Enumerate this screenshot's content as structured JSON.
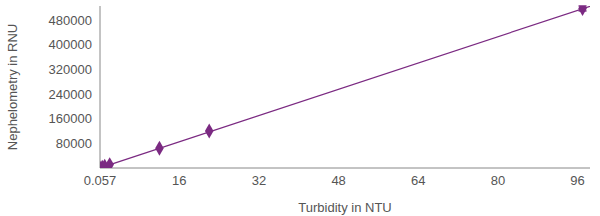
{
  "chart_data": {
    "type": "scatter",
    "x_label": "Turbidity in NTU",
    "y_label": "Nephelometry in RNU",
    "x": [
      0.057,
      0.5,
      1,
      2,
      12,
      22,
      97
    ],
    "values": [
      500,
      3000,
      6000,
      11000,
      64000,
      120000,
      517000
    ],
    "errors": [
      0,
      0,
      0,
      0,
      0,
      0,
      8000
    ],
    "trendline": {
      "x": [
        0.057,
        98.5
      ],
      "values": [
        0,
        524000
      ]
    },
    "color": "#7b2a82",
    "marker": "diamond",
    "xlim": [
      0.057,
      98.5
    ],
    "xticks": [
      0.057,
      16,
      32,
      48,
      64,
      80,
      96
    ],
    "ylim": [
      0,
      525000
    ],
    "yticks": [
      80000,
      160000,
      240000,
      320000,
      400000,
      480000
    ],
    "grid": false
  }
}
